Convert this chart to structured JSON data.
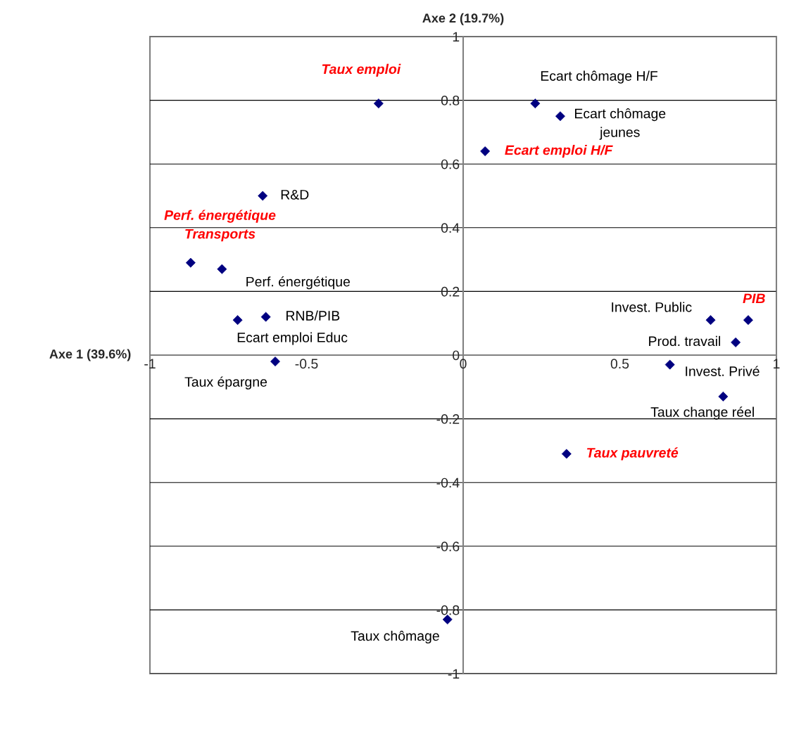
{
  "chart_data": {
    "type": "scatter",
    "xlabel": "Axe 1 (39.6%)",
    "ylabel": "Axe 2 (19.7%)",
    "series": [
      {
        "color": "#000080",
        "marker": "diamond",
        "x": [
          0.23,
          0.31,
          -0.64,
          -0.77,
          -0.63,
          -0.72,
          -0.6,
          0.79,
          0.87,
          0.66,
          0.83,
          -0.05
        ],
        "values": [
          0.79,
          0.75,
          0.5,
          0.27,
          0.12,
          0.11,
          -0.02,
          0.11,
          0.04,
          -0.03,
          -0.13,
          -0.83
        ],
        "value_labels": [
          "Ecart chômage H/F",
          "Ecart chômage\njeunes",
          "R&D",
          "Perf. énergétique",
          "RNB/PIB",
          "Ecart emploi Educ",
          "Taux épargne",
          "Invest. Public",
          "Prod. travail",
          "Invest. Privé",
          "Taux change réel",
          "Taux chômage"
        ]
      },
      {
        "color": "#000080",
        "marker": "diamond",
        "x": [
          -0.27,
          0.07,
          -0.87,
          0.91,
          0.33
        ],
        "values": [
          0.79,
          0.64,
          0.29,
          0.11,
          -0.31
        ],
        "value_labels": [
          "Taux emploi",
          "Ecart emploi H/F",
          "Perf. énergétique\nTransports",
          "PIB",
          "Taux pauvreté"
        ]
      }
    ],
    "xlim": [
      -1,
      1
    ],
    "ylim": [
      -1,
      1
    ],
    "xticks": [
      -1,
      -0.5,
      0,
      0.5,
      1
    ],
    "yticks": [
      -1,
      -0.8,
      -0.6,
      -0.4,
      -0.2,
      0,
      0.2,
      0.4,
      0.6,
      0.8,
      1
    ],
    "grid": "y",
    "legend": false
  }
}
